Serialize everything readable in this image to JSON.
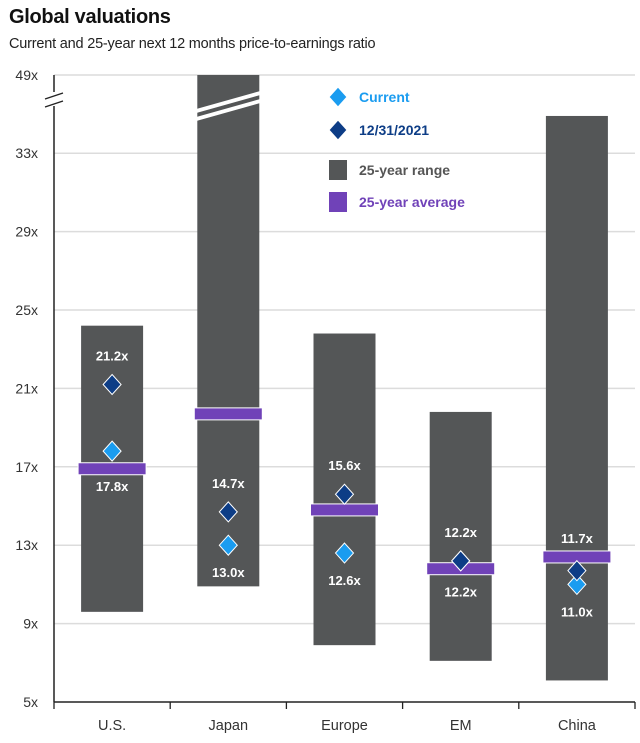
{
  "chart_data": {
    "type": "range-bar",
    "title": "Global valuations",
    "subtitle": "Current and 25-year next 12 months price-to-earnings ratio",
    "xlabel": "",
    "ylabel": "",
    "y_ticks": [
      "5x",
      "9x",
      "13x",
      "17x",
      "21x",
      "25x",
      "29x",
      "33x",
      "49x"
    ],
    "y_tick_values": [
      5,
      9,
      13,
      17,
      21,
      25,
      29,
      33,
      49
    ],
    "ylim": [
      5,
      49
    ],
    "axis_break": "between 33x and 49x",
    "grid": true,
    "legend_position": "top-right",
    "categories": [
      "U.S.",
      "Japan",
      "Europe",
      "EM",
      "China"
    ],
    "series": [
      {
        "name": "Current",
        "type": "diamond",
        "color": "#1a9cf0",
        "values": [
          17.8,
          13.0,
          12.6,
          12.2,
          11.0
        ],
        "labels": [
          "17.8x",
          "13.0x",
          "12.6x",
          "12.2x",
          "11.0x"
        ]
      },
      {
        "name": "12/31/2021",
        "type": "diamond",
        "color": "#0d3d86",
        "values": [
          21.2,
          14.7,
          15.6,
          12.2,
          11.7
        ],
        "labels": [
          "21.2x",
          "14.7x",
          "15.6x",
          "12.2x",
          "11.7x"
        ]
      },
      {
        "name": "25-year range",
        "type": "range",
        "color": "#545657",
        "low": [
          9.6,
          10.9,
          7.9,
          7.1,
          6.1
        ],
        "high": [
          24.2,
          49,
          23.8,
          19.8,
          34.9
        ]
      },
      {
        "name": "25-year average",
        "type": "bar-marker",
        "color": "#7042b8",
        "values": [
          16.9,
          19.7,
          14.8,
          11.8,
          12.4
        ]
      }
    ]
  }
}
